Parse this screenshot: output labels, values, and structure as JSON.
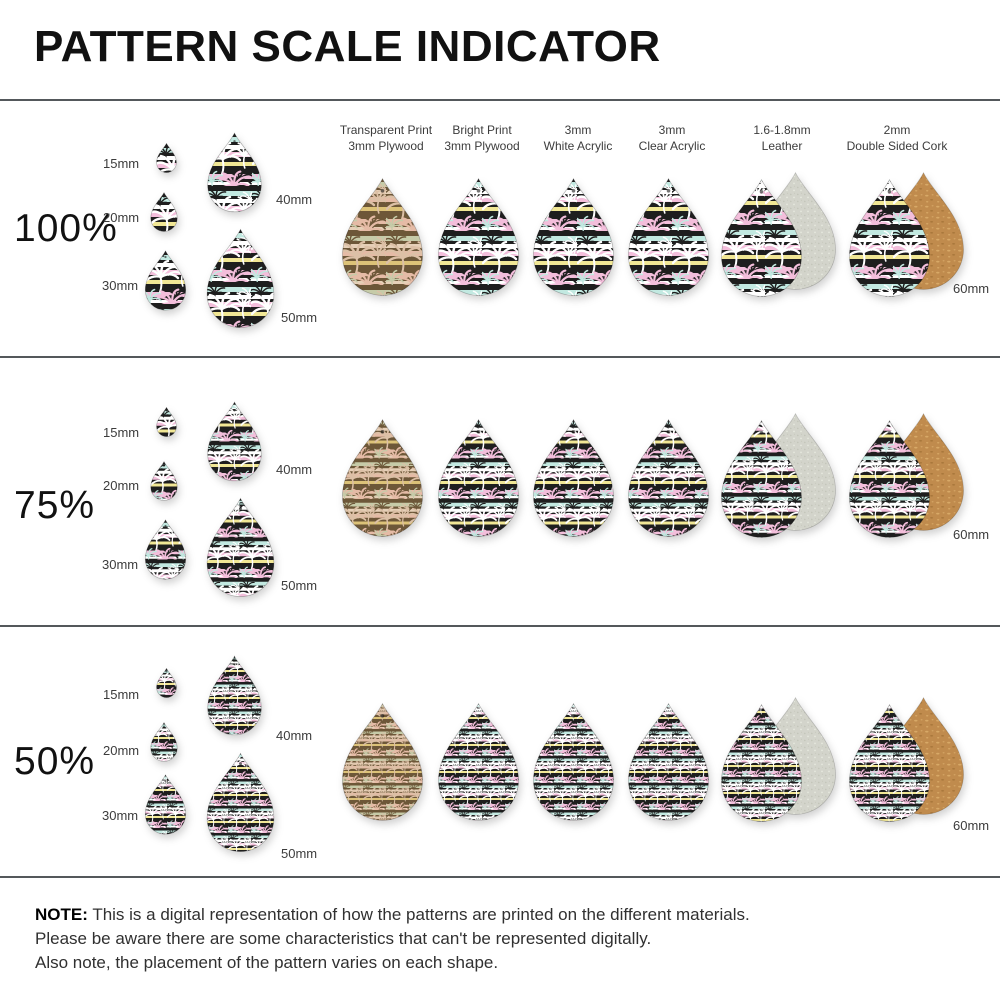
{
  "title": "PATTERN SCALE INDICATOR",
  "columns": [
    {
      "line1": "Transparent Print",
      "line2": "3mm Plywood"
    },
    {
      "line1": "Bright Print",
      "line2": "3mm Plywood"
    },
    {
      "line1": "3mm",
      "line2": "White Acrylic"
    },
    {
      "line1": "3mm",
      "line2": "Clear Acrylic"
    },
    {
      "line1": "1.6-1.8mm",
      "line2": "Leather"
    },
    {
      "line1": "2mm",
      "line2": "Double Sided Cork"
    }
  ],
  "rows": [
    {
      "scale_label": "100%",
      "sizes": [
        "15mm",
        "20mm",
        "30mm",
        "40mm",
        "50mm"
      ],
      "material_size": "60mm"
    },
    {
      "scale_label": "75%",
      "sizes": [
        "15mm",
        "20mm",
        "30mm",
        "40mm",
        "50mm"
      ],
      "material_size": "60mm"
    },
    {
      "scale_label": "50%",
      "sizes": [
        "15mm",
        "20mm",
        "30mm",
        "40mm",
        "50mm"
      ],
      "material_size": "60mm"
    }
  ],
  "note": {
    "prefix": "NOTE:",
    "lines": [
      "This is a digital representation of how the patterns are printed on the different materials.",
      "Please be aware there are some characteristics that can't be represented digitally.",
      "Also note, the placement of the pattern varies on each shape."
    ]
  },
  "palette": {
    "pink": "#f3bedb",
    "yellow": "#f1e795",
    "aqua": "#c2e9e1",
    "white": "#ffffff",
    "pat_black": "#1e1e1e",
    "wood_bg": "#6d5738",
    "wood_cream": "#e6d0b8",
    "wood_pink": "#e5bba6",
    "wood_yellow": "#dcc278",
    "wood_sage": "#c6cba8",
    "wood_palm": "#dcc0a6",
    "suede_base": "#d3d4cb",
    "suede_dark": "#c3c5b9",
    "suede_light": "#e6e8de",
    "cork_base": "#c08b4d",
    "cork_light": "#d8a967",
    "cork_dark": "#a9773b",
    "divider": "#54585b",
    "text_dark": "#111111",
    "text_grey": "#3c3c3c"
  }
}
